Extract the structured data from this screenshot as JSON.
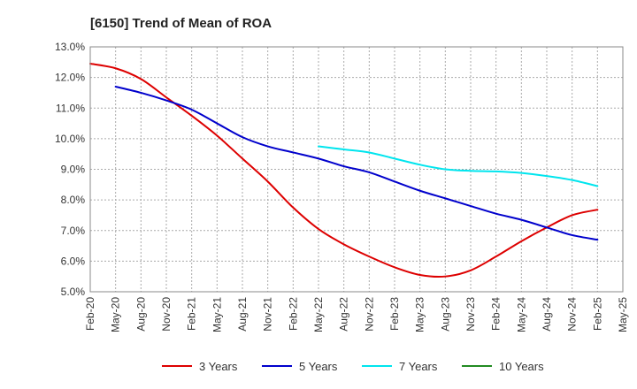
{
  "chart_data": {
    "type": "line",
    "title": "[6150]  Trend of Mean of ROA",
    "xlabel": "",
    "ylabel": "",
    "ylim": [
      5.0,
      13.0
    ],
    "y_ticks": [
      "5.0%",
      "6.0%",
      "7.0%",
      "8.0%",
      "9.0%",
      "10.0%",
      "11.0%",
      "12.0%",
      "13.0%"
    ],
    "x_ticks": [
      "Feb-20",
      "May-20",
      "Aug-20",
      "Nov-20",
      "Feb-21",
      "May-21",
      "Aug-21",
      "Nov-21",
      "Feb-22",
      "May-22",
      "Aug-22",
      "Nov-22",
      "Feb-23",
      "May-23",
      "Aug-23",
      "Nov-23",
      "Feb-24",
      "May-24",
      "Aug-24",
      "Nov-24",
      "Feb-25",
      "May-25"
    ],
    "grid": true,
    "legend_position": "bottom",
    "series": [
      {
        "name": "3 Years",
        "color": "#dd0000",
        "points": [
          [
            0,
            12.45
          ],
          [
            1,
            12.3
          ],
          [
            2,
            11.95
          ],
          [
            3,
            11.35
          ],
          [
            4,
            10.75
          ],
          [
            5,
            10.1
          ],
          [
            6,
            9.35
          ],
          [
            7,
            8.6
          ],
          [
            8,
            7.75
          ],
          [
            9,
            7.05
          ],
          [
            10,
            6.55
          ],
          [
            11,
            6.15
          ],
          [
            12,
            5.8
          ],
          [
            13,
            5.55
          ],
          [
            14,
            5.5
          ],
          [
            15,
            5.7
          ],
          [
            16,
            6.15
          ],
          [
            17,
            6.65
          ],
          [
            18,
            7.1
          ],
          [
            19,
            7.5
          ],
          [
            20,
            7.68
          ]
        ]
      },
      {
        "name": "5 Years",
        "color": "#0000cc",
        "points": [
          [
            1,
            11.7
          ],
          [
            2,
            11.5
          ],
          [
            3,
            11.25
          ],
          [
            4,
            10.95
          ],
          [
            5,
            10.5
          ],
          [
            6,
            10.05
          ],
          [
            7,
            9.75
          ],
          [
            8,
            9.55
          ],
          [
            9,
            9.35
          ],
          [
            10,
            9.1
          ],
          [
            11,
            8.9
          ],
          [
            12,
            8.6
          ],
          [
            13,
            8.3
          ],
          [
            14,
            8.05
          ],
          [
            15,
            7.8
          ],
          [
            16,
            7.55
          ],
          [
            17,
            7.35
          ],
          [
            18,
            7.1
          ],
          [
            19,
            6.85
          ],
          [
            20,
            6.7
          ]
        ]
      },
      {
        "name": "7 Years",
        "color": "#00e5ee",
        "points": [
          [
            9,
            9.75
          ],
          [
            10,
            9.65
          ],
          [
            11,
            9.55
          ],
          [
            12,
            9.35
          ],
          [
            13,
            9.15
          ],
          [
            14,
            9.0
          ],
          [
            15,
            8.95
          ],
          [
            16,
            8.93
          ],
          [
            17,
            8.88
          ],
          [
            18,
            8.78
          ],
          [
            19,
            8.65
          ],
          [
            20,
            8.45
          ]
        ]
      },
      {
        "name": "10 Years",
        "color": "#228b22",
        "points": []
      }
    ]
  }
}
